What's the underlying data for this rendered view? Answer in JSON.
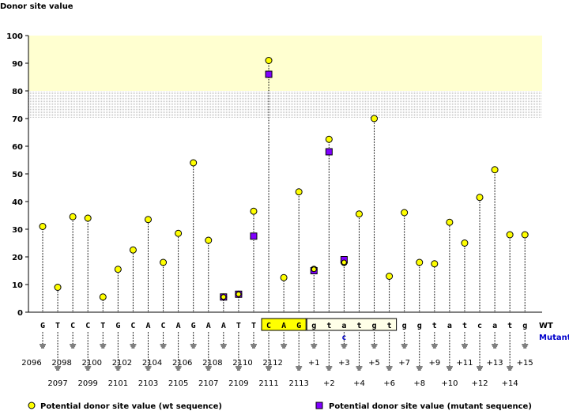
{
  "chart_data": {
    "type": "scatter",
    "title": "Donor site value",
    "ylabel": "Donor site value",
    "ylim": [
      0,
      100
    ],
    "yticks": [
      0,
      10,
      20,
      30,
      40,
      50,
      60,
      70,
      80,
      90,
      100
    ],
    "highlight_band": [
      70,
      100
    ],
    "wt_label": "WT",
    "mutant_label": "Mutant",
    "bases": [
      "G",
      "T",
      "C",
      "C",
      "T",
      "G",
      "C",
      "A",
      "C",
      "A",
      "G",
      "A",
      "A",
      "T",
      "T",
      "C",
      "A",
      "G",
      "g",
      "t",
      "a",
      "t",
      "g",
      "t",
      "g",
      "g",
      "t",
      "a",
      "t",
      "c",
      "a",
      "t",
      "g"
    ],
    "positions": [
      "2096",
      "2097",
      "2098",
      "2099",
      "2100",
      "2101",
      "2102",
      "2103",
      "2104",
      "2105",
      "2106",
      "2107",
      "2108",
      "2109",
      "2110",
      "2111",
      "2112",
      "2113",
      "+1",
      "+2",
      "+3",
      "+4",
      "+5",
      "+6",
      "+7",
      "+8",
      "+9",
      "+10",
      "+11",
      "+12",
      "+13",
      "+14",
      "+15"
    ],
    "exon_box_range": [
      15,
      17
    ],
    "intron_box_range": [
      18,
      23
    ],
    "mutant_bases": [
      {
        "index": 20,
        "base": "c"
      }
    ],
    "series": [
      {
        "name": "Potential donor site value (wt sequence)",
        "marker": "circle",
        "color": "#ffff00",
        "values": [
          31,
          9,
          34.5,
          34,
          5.5,
          15.5,
          22.5,
          33.5,
          18,
          28.5,
          54,
          26,
          5.5,
          6.5,
          36.5,
          91,
          12.5,
          43.5,
          15.5,
          62.5,
          18,
          35.5,
          70,
          13,
          36,
          18,
          17.5,
          32.5,
          25,
          41.5,
          51.5,
          28,
          28
        ]
      },
      {
        "name": "Potential donor site value (mutant sequence)",
        "marker": "square",
        "color": "#8000ff",
        "points": [
          {
            "index": 12,
            "value": 5.5
          },
          {
            "index": 13,
            "value": 6.5
          },
          {
            "index": 14,
            "value": 27.5
          },
          {
            "index": 15,
            "value": 86
          },
          {
            "index": 18,
            "value": 15
          },
          {
            "index": 19,
            "value": 58
          },
          {
            "index": 20,
            "value": 19
          }
        ]
      }
    ]
  }
}
